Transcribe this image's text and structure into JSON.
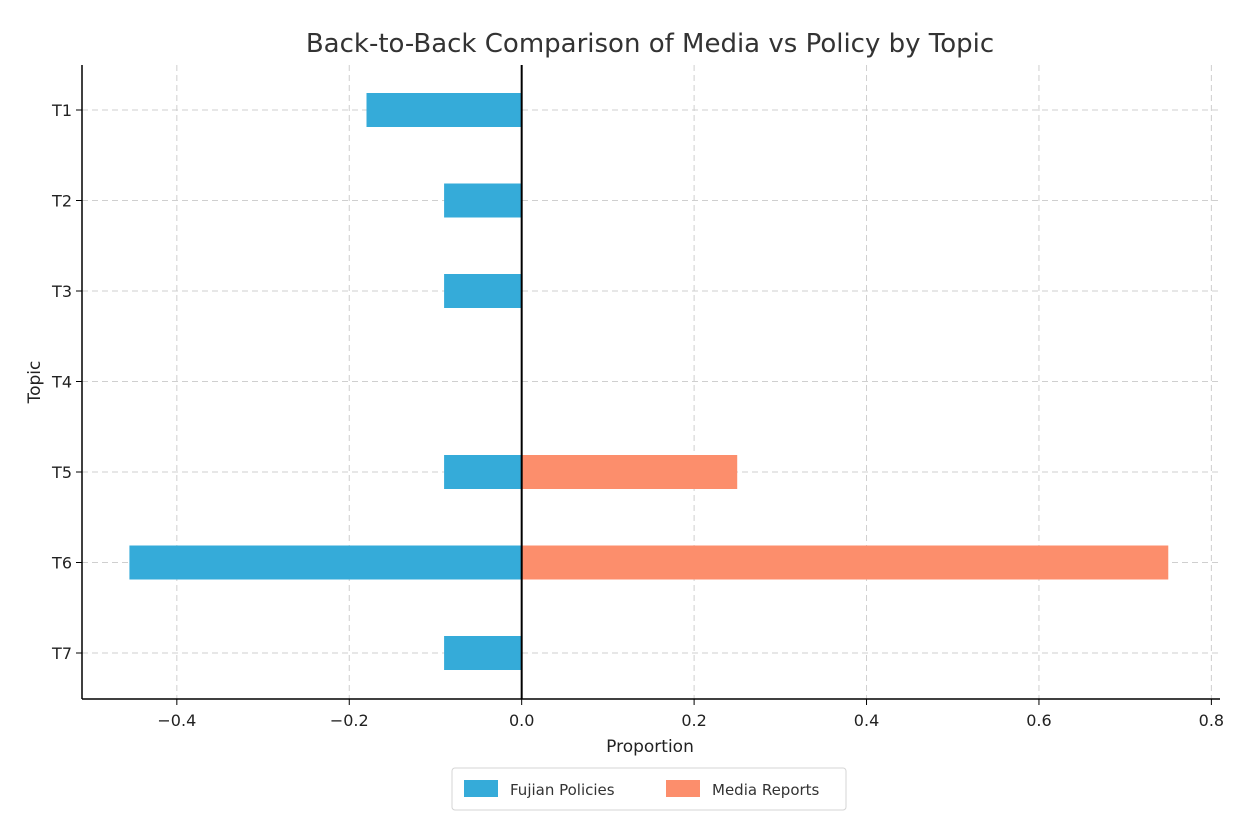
{
  "chart_data": {
    "type": "bar",
    "orientation": "horizontal",
    "title": "Back-to-Back Comparison of Media vs Policy by Topic",
    "xlabel": "Proportion",
    "ylabel": "Topic",
    "categories": [
      "T1",
      "T2",
      "T3",
      "T4",
      "T5",
      "T6",
      "T7"
    ],
    "series": [
      {
        "name": "Fujian Policies",
        "color": "#35abd9",
        "values": [
          -0.18,
          -0.09,
          -0.09,
          0,
          -0.09,
          -0.455,
          -0.09
        ]
      },
      {
        "name": "Media Reports",
        "color": "#fc8e6c",
        "values": [
          0,
          0,
          0,
          0,
          0.25,
          0.75,
          0
        ]
      }
    ],
    "xlim": [
      -0.51,
      0.81
    ],
    "xticks": [
      -0.4,
      -0.2,
      0.0,
      0.2,
      0.4,
      0.6,
      0.8
    ],
    "xtick_labels": [
      "−0.4",
      "−0.2",
      "0.0",
      "0.2",
      "0.4",
      "0.6",
      "0.8"
    ],
    "grid": true,
    "legend_position": "bottom-center"
  }
}
